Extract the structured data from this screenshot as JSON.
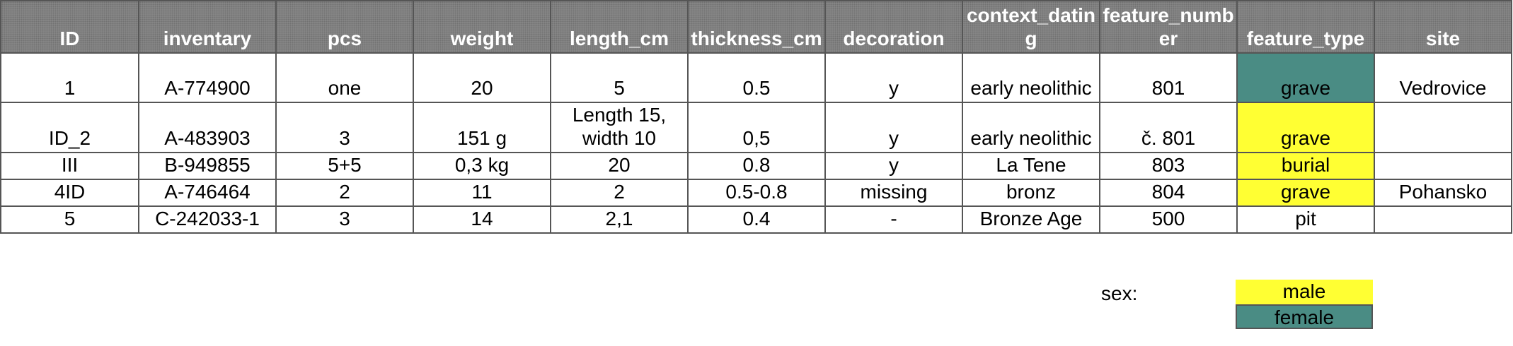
{
  "colors": {
    "grid_border": "#555555",
    "header_bg": "#8a8a8a",
    "header_text": "#ffffff",
    "male": "#ffff33",
    "female": "#4a8c84"
  },
  "table": {
    "headers": [
      "ID",
      "inventary",
      "pcs",
      "weight",
      "length_cm",
      "thickness_cm",
      "decoration",
      "context_dating",
      "feature_number",
      "feature_type",
      "site"
    ],
    "rows": [
      [
        "1",
        "A-774900",
        "one",
        "20",
        "5",
        "0.5",
        "y",
        "early neolithic",
        "801",
        "grave",
        "Vedrovice"
      ],
      [
        "ID_2",
        "A-483903",
        "3",
        "151 g",
        "Length 15, width 10",
        "0,5",
        "y",
        "early neolithic",
        "č. 801",
        "grave",
        ""
      ],
      [
        "III",
        "B-949855",
        "5+5",
        "0,3 kg",
        "20",
        "0.8",
        "y",
        "La Tene",
        "803",
        "burial",
        ""
      ],
      [
        "4ID",
        "A-746464",
        "2",
        "11",
        "2",
        "0.5-0.8",
        "missing",
        "bronz",
        "804",
        "grave",
        "Pohansko"
      ],
      [
        "5",
        "C-242033-1",
        "3",
        "14",
        "2,1",
        "0.4",
        "-",
        "Bronze Age",
        "500",
        "pit",
        ""
      ]
    ],
    "feature_type_fill": [
      "female",
      "male",
      "male",
      "male",
      "none"
    ]
  },
  "legend": {
    "label": "sex:",
    "items": [
      {
        "key": "male",
        "label": "male"
      },
      {
        "key": "female",
        "label": "female"
      }
    ]
  }
}
